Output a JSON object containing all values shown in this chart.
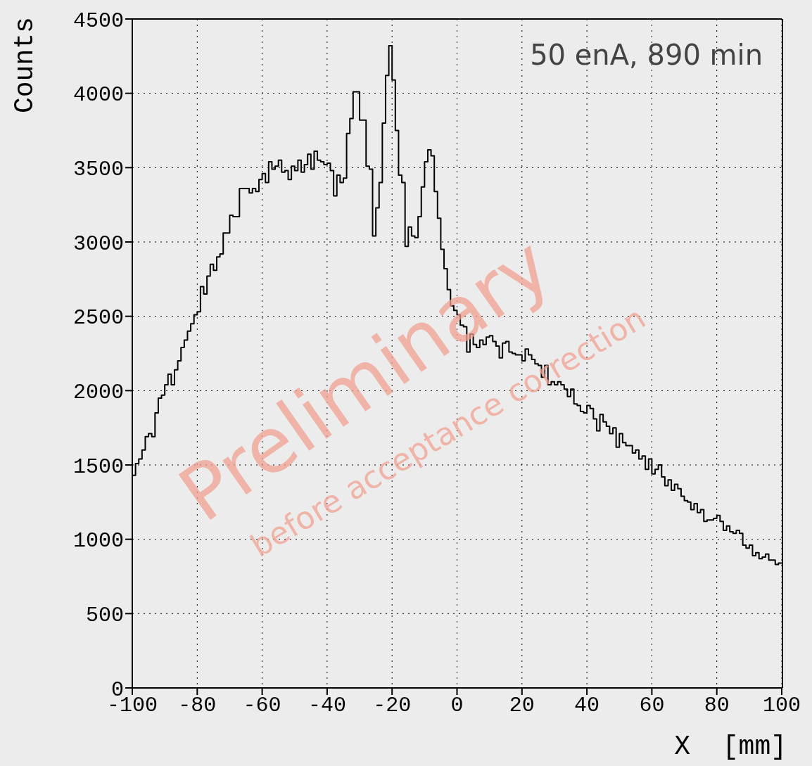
{
  "chart_data": {
    "type": "histogram",
    "xlabel": "X  [mm]",
    "ylabel": "Counts",
    "annotations": [
      "50 enA, 890 min",
      "Preliminary",
      "before acceptance correction"
    ],
    "bins": [
      -100,
      -99,
      -98,
      -97,
      -96,
      -95,
      -94,
      -93,
      -92,
      -91,
      -90,
      -89,
      -88,
      -87,
      -86,
      -85,
      -84,
      -83,
      -82,
      -81,
      -80,
      -79,
      -78,
      -77,
      -76,
      -75,
      -74,
      -73,
      -72,
      -71,
      -70,
      -69,
      -68,
      -67,
      -66,
      -65,
      -64,
      -63,
      -62,
      -61,
      -60,
      -59,
      -58,
      -57,
      -56,
      -55,
      -54,
      -53,
      -52,
      -51,
      -50,
      -49,
      -48,
      -47,
      -46,
      -45,
      -44,
      -43,
      -42,
      -41,
      -40,
      -39,
      -38,
      -37,
      -36,
      -35,
      -34,
      -33,
      -32,
      -31,
      -30,
      -29,
      -28,
      -27,
      -26,
      -25,
      -24,
      -23,
      -22,
      -21,
      -20,
      -19,
      -18,
      -17,
      -16,
      -15,
      -14,
      -13,
      -12,
      -11,
      -10,
      -9,
      -8,
      -7,
      -6,
      -5,
      -4,
      -3,
      -2,
      -1,
      0,
      1,
      2,
      3,
      4,
      5,
      6,
      7,
      8,
      9,
      10,
      11,
      12,
      13,
      14,
      15,
      16,
      17,
      18,
      19,
      20,
      21,
      22,
      23,
      24,
      25,
      26,
      27,
      28,
      29,
      30,
      31,
      32,
      33,
      34,
      35,
      36,
      37,
      38,
      39,
      40,
      41,
      42,
      43,
      44,
      45,
      46,
      47,
      48,
      49,
      50,
      51,
      52,
      53,
      54,
      55,
      56,
      57,
      58,
      59,
      60,
      61,
      62,
      63,
      64,
      65,
      66,
      67,
      68,
      69,
      70,
      71,
      72,
      73,
      74,
      75,
      76,
      77,
      78,
      79,
      80,
      81,
      82,
      83,
      84,
      85,
      86,
      87,
      88,
      89,
      90,
      91,
      92,
      93,
      94,
      95,
      96,
      97,
      98,
      99,
      100
    ],
    "values": [
      1430,
      1510,
      1540,
      1600,
      1690,
      1710,
      1690,
      1850,
      1950,
      1970,
      2040,
      2110,
      2040,
      2140,
      2200,
      2290,
      2340,
      2400,
      2450,
      2510,
      2530,
      2700,
      2650,
      2770,
      2850,
      2810,
      2900,
      2920,
      3060,
      3060,
      3180,
      3170,
      3170,
      3360,
      3360,
      3360,
      3330,
      3360,
      3340,
      3420,
      3460,
      3400,
      3540,
      3490,
      3510,
      3550,
      3470,
      3480,
      3420,
      3510,
      3480,
      3550,
      3470,
      3520,
      3590,
      3490,
      3610,
      3550,
      3540,
      3520,
      3530,
      3480,
      3310,
      3450,
      3400,
      3430,
      3730,
      3830,
      4010,
      4010,
      3820,
      3820,
      3510,
      3490,
      3040,
      3230,
      3400,
      3800,
      4120,
      4320,
      4090,
      3750,
      3450,
      3400,
      2970,
      3100,
      3040,
      3030,
      3170,
      3370,
      3540,
      3620,
      3580,
      3340,
      3160,
      2950,
      2820,
      2680,
      2570,
      2540,
      2510,
      2440,
      2430,
      2260,
      2380,
      2310,
      2290,
      2340,
      2310,
      2360,
      2370,
      2330,
      2300,
      2220,
      2320,
      2330,
      2260,
      2250,
      2240,
      2240,
      2200,
      2280,
      2240,
      2210,
      2180,
      2170,
      2090,
      2170,
      2040,
      2060,
      2040,
      2060,
      2040,
      2010,
      1960,
      2010,
      1910,
      1900,
      1860,
      1850,
      1900,
      1880,
      1810,
      1730,
      1840,
      1790,
      1760,
      1710,
      1750,
      1620,
      1710,
      1650,
      1630,
      1630,
      1580,
      1600,
      1540,
      1560,
      1470,
      1540,
      1440,
      1470,
      1500,
      1420,
      1360,
      1400,
      1330,
      1370,
      1340,
      1290,
      1260,
      1250,
      1200,
      1240,
      1180,
      1200,
      1120,
      1130,
      1130,
      1140,
      1160,
      1120,
      1060,
      1090,
      1050,
      1040,
      1060,
      1040,
      960,
      940,
      960,
      890,
      910,
      870,
      880,
      900,
      860,
      860,
      830,
      840
    ],
    "color": "#000000",
    "xlim": [
      -100,
      100
    ],
    "xticks": [
      -100,
      -80,
      -60,
      -40,
      -20,
      0,
      20,
      40,
      60,
      80,
      100
    ],
    "ylim": [
      0,
      4500
    ],
    "yticks": [
      0,
      500,
      1000,
      1500,
      2000,
      2500,
      3000,
      3500,
      4000,
      4500
    ],
    "grid": true
  }
}
